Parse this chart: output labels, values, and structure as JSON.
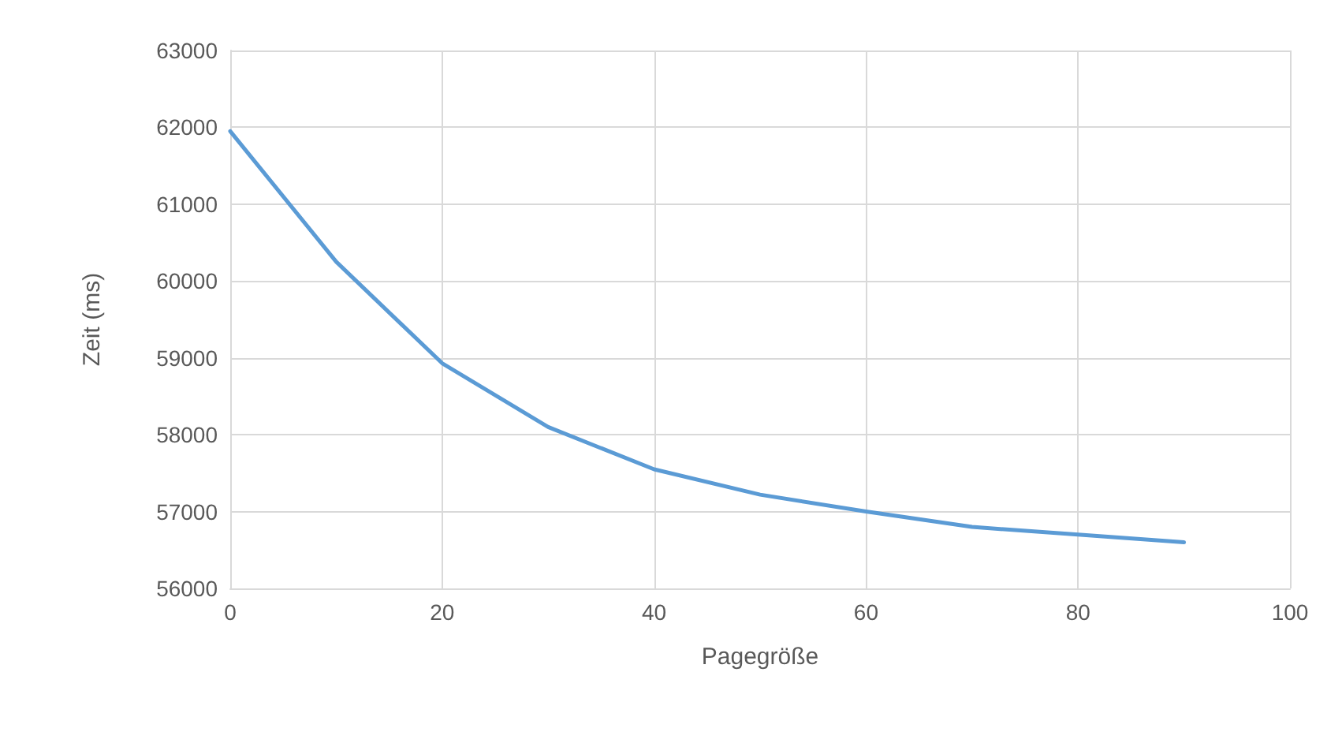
{
  "chart_data": {
    "type": "line",
    "xlabel": "Pagegröße",
    "ylabel": "Zeit (ms)",
    "x": [
      0,
      10,
      20,
      30,
      40,
      50,
      60,
      70,
      80,
      90
    ],
    "series": [
      {
        "color": "#5b9bd5",
        "values": [
          61950,
          60250,
          58930,
          58100,
          57550,
          57220,
          57000,
          56800,
          56700,
          56600
        ]
      }
    ],
    "xlim": [
      0,
      100
    ],
    "xticks": [
      0,
      20,
      40,
      60,
      80,
      100
    ],
    "ylim": [
      56000,
      63000
    ],
    "yticks": [
      56000,
      57000,
      58000,
      59000,
      60000,
      61000,
      62000,
      63000
    ],
    "grid": true,
    "marker": "none",
    "line_style": "solid"
  }
}
